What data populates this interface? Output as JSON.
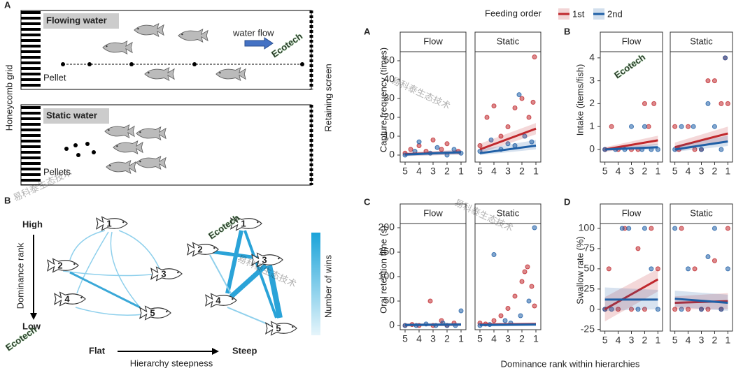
{
  "diagram": {
    "panel_a": "A",
    "flowing": "Flowing water",
    "water_flow": "water flow",
    "pellet": "Pellet",
    "static": "Static water",
    "pellets": "Pellets",
    "honeycomb": "Honeycomb grid",
    "screen": "Retaining screen",
    "panel_b": "B",
    "high": "High",
    "rank": "Dominance rank",
    "low": "Low",
    "flat": "Flat",
    "steep": "Steep",
    "steepness": "Hierarchy steepness",
    "wins": "Number of wins",
    "flat_nodes": [
      "1",
      "2",
      "3",
      "4",
      "5"
    ],
    "steep_nodes": [
      "1",
      "2",
      "3",
      "4",
      "5"
    ]
  },
  "watermark": [
    "易科泰生态技术",
    "Ecotech"
  ],
  "legend": {
    "title": "Feeding order",
    "items": [
      {
        "name": "1st",
        "color": "#c0282d"
      },
      {
        "name": "2nd",
        "color": "#1f5fa6"
      }
    ]
  },
  "xlabel": "Dominance rank within hierarchies",
  "chart_data": [
    {
      "type": "scatter",
      "panel": "A",
      "ylabel": "Capture frequency (times)",
      "xlim": [
        5.35,
        0.65
      ],
      "xticks": [
        5,
        4,
        3,
        2,
        1
      ],
      "ylim": [
        -3.7,
        54.8
      ],
      "yticks": [
        0,
        10,
        20,
        30,
        40,
        50
      ],
      "fit_x": [
        5,
        1
      ],
      "facets": [
        {
          "label": "Flow",
          "series": [
            {
              "x": [
                5,
                4.6,
                4,
                3.5,
                3,
                2.4,
                2,
                1.2
              ],
              "values": [
                1,
                3,
                5,
                2,
                8,
                3,
                6,
                2
              ],
              "fit": [
                0.5,
                1.5
              ],
              "fit_lower": [
                -0.5,
                0.3
              ],
              "fit_upper": [
                1.5,
                2.7
              ]
            },
            {
              "x": [
                5,
                4.3,
                4,
                3.2,
                2.7,
                2,
                1.5,
                1
              ],
              "values": [
                0,
                2,
                7,
                1,
                4,
                0,
                3,
                1
              ],
              "fit": [
                0.3,
                1.5
              ],
              "fit_lower": [
                -0.5,
                0.3
              ],
              "fit_upper": [
                1.1,
                2.7
              ]
            }
          ]
        },
        {
          "label": "Static",
          "series": [
            {
              "x": [
                5,
                4.5,
                4,
                3.5,
                3,
                2.5,
                2,
                1.5,
                1.2,
                1.1
              ],
              "values": [
                5,
                20,
                26,
                10,
                15,
                25,
                30,
                20,
                28,
                52
              ],
              "fit": [
                3,
                14
              ],
              "fit_lower": [
                1,
                11
              ],
              "fit_upper": [
                6,
                17
              ]
            },
            {
              "x": [
                5,
                4.2,
                3.5,
                3,
                2.5,
                2.2,
                1.8,
                1.3
              ],
              "values": [
                2,
                8,
                3,
                6,
                5,
                32,
                10,
                7
              ],
              "fit": [
                1,
                5
              ],
              "fit_lower": [
                0,
                3
              ],
              "fit_upper": [
                3,
                8
              ]
            }
          ]
        }
      ]
    },
    {
      "type": "scatter",
      "panel": "B",
      "ylabel": "Intake (items/fish)",
      "xlim": [
        5.35,
        0.65
      ],
      "xticks": [
        5,
        4,
        3,
        2,
        1
      ],
      "ylim": [
        -0.55,
        4.27
      ],
      "yticks": [
        0,
        1,
        2,
        3,
        4
      ],
      "fit_x": [
        5,
        1
      ],
      "facets": [
        {
          "label": "Flow",
          "series": [
            {
              "x": [
                5,
                4.5,
                4,
                3,
                2.5,
                2,
                1.7,
                1.3
              ],
              "values": [
                0,
                1,
                0,
                0,
                0,
                2,
                1,
                2
              ],
              "fit": [
                0,
                0.4
              ],
              "fit_lower": [
                -0.1,
                0.2
              ],
              "fit_upper": [
                0.1,
                0.6
              ]
            },
            {
              "x": [
                5,
                4.2,
                3.5,
                3,
                2.2,
                2,
                1.5,
                1
              ],
              "values": [
                0,
                0,
                0,
                1,
                0,
                1,
                0,
                0
              ],
              "fit": [
                0,
                0.1
              ],
              "fit_lower": [
                -0.05,
                0
              ],
              "fit_upper": [
                0.05,
                0.25
              ]
            }
          ]
        },
        {
          "label": "Static",
          "series": [
            {
              "x": [
                5,
                4.7,
                4,
                3.5,
                3,
                2.5,
                2,
                1.5,
                1.2,
                1
              ],
              "values": [
                1,
                0,
                1,
                0,
                0,
                3,
                3,
                2,
                4,
                2
              ],
              "fit": [
                0.1,
                0.7
              ],
              "fit_lower": [
                -0.1,
                0.4
              ],
              "fit_upper": [
                0.3,
                1
              ]
            },
            {
              "x": [
                5,
                4.5,
                3.6,
                3,
                2.5,
                2,
                1.5,
                1.2
              ],
              "values": [
                0,
                1,
                1,
                0,
                2,
                1,
                0,
                4
              ],
              "fit": [
                0,
                0.35
              ],
              "fit_lower": [
                -0.1,
                0.15
              ],
              "fit_upper": [
                0.15,
                0.6
              ]
            }
          ]
        }
      ]
    },
    {
      "type": "scatter",
      "panel": "C",
      "ylabel": "Oral retention time (s)",
      "xlim": [
        5.35,
        0.65
      ],
      "xticks": [
        5,
        4,
        3,
        2,
        1
      ],
      "ylim": [
        -8.6,
        208.6
      ],
      "yticks": [
        0,
        50,
        100,
        150,
        200
      ],
      "fit_x": [
        5,
        1
      ],
      "facets": [
        {
          "label": "Flow",
          "series": [
            {
              "x": [
                5,
                4.5,
                4,
                3.2,
                3,
                2.4,
                2,
                1.5
              ],
              "values": [
                0,
                2,
                0,
                50,
                0,
                10,
                0,
                5
              ],
              "fit": [
                1,
                2
              ],
              "fit_lower": [
                -2,
                -1
              ],
              "fit_upper": [
                4,
                5
              ]
            },
            {
              "x": [
                5,
                4.2,
                3.5,
                2.8,
                2.3,
                2,
                1.4,
                1
              ],
              "values": [
                0,
                0,
                3,
                0,
                5,
                0,
                0,
                30
              ],
              "fit": [
                1,
                2
              ],
              "fit_lower": [
                -2,
                -1
              ],
              "fit_upper": [
                4,
                5
              ]
            }
          ]
        },
        {
          "label": "Static",
          "series": [
            {
              "x": [
                5,
                4.6,
                4,
                3.5,
                3,
                2.5,
                2,
                1.8,
                1.6,
                1.3,
                1.1
              ],
              "values": [
                5,
                3,
                10,
                20,
                35,
                60,
                90,
                110,
                120,
                80,
                40
              ],
              "fit": [
                2,
                3
              ],
              "fit_lower": [
                -1,
                0
              ],
              "fit_upper": [
                5,
                6
              ]
            },
            {
              "x": [
                5,
                4.3,
                4,
                3.2,
                2.8,
                2.1,
                1.5,
                1.1
              ],
              "values": [
                0,
                2,
                145,
                10,
                5,
                20,
                50,
                200
              ],
              "fit": [
                1,
                2
              ],
              "fit_lower": [
                -2,
                -1
              ],
              "fit_upper": [
                4,
                5
              ]
            }
          ]
        }
      ]
    },
    {
      "type": "scatter",
      "panel": "D",
      "ylabel": "Swallow rate (%)",
      "xlim": [
        5.35,
        0.65
      ],
      "xticks": [
        5,
        4,
        3,
        2,
        1
      ],
      "ylim": [
        -27,
        106
      ],
      "yticks": [
        -25,
        0,
        25,
        50,
        75,
        100
      ],
      "fit_x": [
        5,
        1
      ],
      "facets": [
        {
          "label": "Flow",
          "series": [
            {
              "x": [
                5,
                4.7,
                4,
                3.5,
                3,
                2.5,
                2,
                1.5,
                1
              ],
              "values": [
                0,
                50,
                0,
                100,
                0,
                75,
                0,
                100,
                50
              ],
              "fit": [
                0,
                37
              ],
              "fit_lower": [
                -15,
                22
              ],
              "fit_upper": [
                15,
                50
              ]
            },
            {
              "x": [
                5,
                4.5,
                3.7,
                3.2,
                2.5,
                2,
                1.5,
                1
              ],
              "values": [
                0,
                0,
                100,
                100,
                0,
                100,
                50,
                0
              ],
              "fit": [
                12,
                12
              ],
              "fit_lower": [
                -2,
                0
              ],
              "fit_upper": [
                27,
                24
              ]
            }
          ]
        },
        {
          "label": "Static",
          "series": [
            {
              "x": [
                5,
                4.5,
                4,
                3.5,
                3,
                2.5,
                2,
                1.5,
                1
              ],
              "values": [
                0,
                100,
                0,
                50,
                0,
                0,
                60,
                0,
                100
              ],
              "fit": [
                8,
                10
              ],
              "fit_lower": [
                0,
                0
              ],
              "fit_upper": [
                16,
                20
              ]
            },
            {
              "x": [
                5,
                4.5,
                4,
                3,
                2.5,
                2,
                1.5,
                1
              ],
              "values": [
                100,
                0,
                50,
                0,
                65,
                100,
                0,
                50
              ],
              "fit": [
                13,
                8
              ],
              "fit_lower": [
                3,
                -2
              ],
              "fit_upper": [
                23,
                18
              ]
            }
          ]
        }
      ]
    }
  ]
}
